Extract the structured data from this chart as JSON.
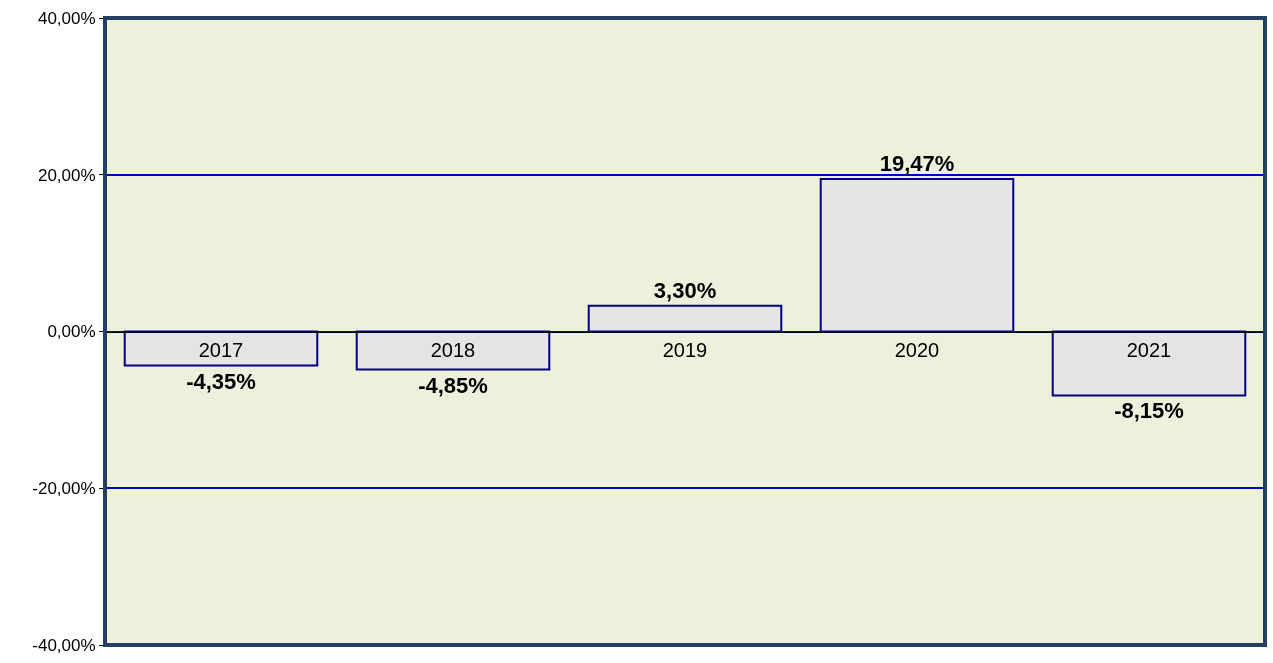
{
  "chart_data": {
    "type": "bar",
    "categories": [
      "2017",
      "2018",
      "2019",
      "2020",
      "2021"
    ],
    "values": [
      -4.35,
      -4.85,
      3.3,
      19.47,
      -8.15
    ],
    "value_labels": [
      "-4,35%",
      "-4,85%",
      "3,30%",
      "19,47%",
      "-8,15%"
    ],
    "color": "#e4e4e4",
    "ylim": [
      -40,
      40
    ],
    "yticks": [
      {
        "value": -40,
        "label": "-40,00%"
      },
      {
        "value": -20,
        "label": "-20,00%"
      },
      {
        "value": 0,
        "label": "0,00%"
      },
      {
        "value": 20,
        "label": "20,00%"
      },
      {
        "value": 40,
        "label": "40,00%"
      }
    ],
    "grid": "y"
  }
}
